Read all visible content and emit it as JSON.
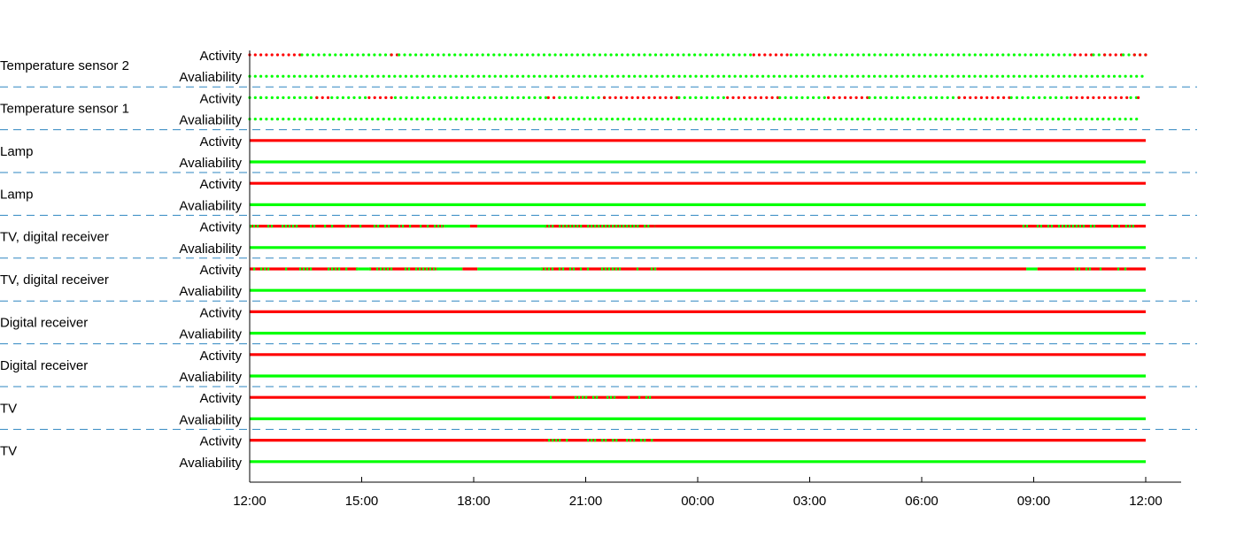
{
  "chart_data": {
    "type": "timeline",
    "xlim": [
      "12:00",
      "12:00 (+1 day)"
    ],
    "x_ticks": [
      "12:00",
      "15:00",
      "18:00",
      "21:00",
      "00:00",
      "03:00",
      "06:00",
      "09:00",
      "12:00"
    ],
    "row_labels": [
      "Activity",
      "Avaliability"
    ],
    "colors": {
      "on": "#00ff00",
      "off": "#ff0000",
      "divider": "#2e86c1",
      "axis": "#000000"
    },
    "devices": [
      {
        "name": "Temperature sensor 2",
        "style": "dots",
        "activity": [
          {
            "start": 0.0,
            "end": 1.4,
            "state": "off"
          },
          {
            "start": 1.4,
            "end": 3.8,
            "state": "on"
          },
          {
            "start": 3.8,
            "end": 4.0,
            "state": "off"
          },
          {
            "start": 4.0,
            "end": 13.5,
            "state": "on"
          },
          {
            "start": 13.5,
            "end": 14.5,
            "state": "off"
          },
          {
            "start": 14.5,
            "end": 22.1,
            "state": "on"
          },
          {
            "start": 22.1,
            "end": 22.6,
            "state": "off"
          },
          {
            "start": 22.6,
            "end": 22.9,
            "state": "on"
          },
          {
            "start": 22.9,
            "end": 23.4,
            "state": "off"
          },
          {
            "start": 23.4,
            "end": 24.0,
            "state": "on"
          },
          {
            "start": 23.7,
            "end": 24.0,
            "state": "off"
          }
        ],
        "availability": [
          {
            "start": 0.0,
            "end": 24.0,
            "state": "on"
          }
        ]
      },
      {
        "name": "Temperature sensor 1",
        "style": "dots",
        "activity": [
          {
            "start": 0.0,
            "end": 0.3,
            "state": "on"
          },
          {
            "start": 0.3,
            "end": 1.8,
            "state": "on"
          },
          {
            "start": 1.8,
            "end": 2.2,
            "state": "off"
          },
          {
            "start": 2.2,
            "end": 3.2,
            "state": "on"
          },
          {
            "start": 3.2,
            "end": 3.9,
            "state": "off"
          },
          {
            "start": 3.9,
            "end": 8.0,
            "state": "on"
          },
          {
            "start": 8.0,
            "end": 8.3,
            "state": "off"
          },
          {
            "start": 8.3,
            "end": 9.5,
            "state": "on"
          },
          {
            "start": 9.5,
            "end": 11.5,
            "state": "off"
          },
          {
            "start": 11.5,
            "end": 12.8,
            "state": "on"
          },
          {
            "start": 12.8,
            "end": 14.2,
            "state": "off"
          },
          {
            "start": 14.2,
            "end": 15.5,
            "state": "on"
          },
          {
            "start": 15.5,
            "end": 16.6,
            "state": "off"
          },
          {
            "start": 16.6,
            "end": 19.0,
            "state": "on"
          },
          {
            "start": 19.0,
            "end": 20.4,
            "state": "off"
          },
          {
            "start": 20.4,
            "end": 22.0,
            "state": "on"
          },
          {
            "start": 22.0,
            "end": 23.6,
            "state": "off"
          },
          {
            "start": 23.6,
            "end": 23.8,
            "state": "on"
          },
          {
            "start": 23.8,
            "end": 23.85,
            "state": "off"
          }
        ],
        "availability": [
          {
            "start": 0.0,
            "end": 23.85,
            "state": "on"
          }
        ]
      },
      {
        "name": "Lamp",
        "style": "line",
        "activity": [
          {
            "start": 0.0,
            "end": 24.0,
            "state": "off"
          }
        ],
        "availability": [
          {
            "start": 0.0,
            "end": 24.0,
            "state": "on"
          }
        ]
      },
      {
        "name": "Lamp",
        "style": "line",
        "activity": [
          {
            "start": 0.0,
            "end": 24.0,
            "state": "off"
          }
        ],
        "availability": [
          {
            "start": 0.0,
            "end": 24.0,
            "state": "on"
          }
        ]
      },
      {
        "name": "TV, digital receiver",
        "style": "line",
        "activity": [
          {
            "start": 0.0,
            "end": 5.2,
            "state": "flicker"
          },
          {
            "start": 5.2,
            "end": 5.9,
            "state": "on"
          },
          {
            "start": 5.9,
            "end": 6.1,
            "state": "off"
          },
          {
            "start": 6.1,
            "end": 7.9,
            "state": "on"
          },
          {
            "start": 7.9,
            "end": 10.85,
            "state": "flicker"
          },
          {
            "start": 10.85,
            "end": 20.7,
            "state": "off"
          },
          {
            "start": 20.7,
            "end": 23.8,
            "state": "flicker"
          },
          {
            "start": 23.8,
            "end": 24.0,
            "state": "off"
          }
        ],
        "availability": [
          {
            "start": 0.0,
            "end": 24.0,
            "state": "on"
          }
        ]
      },
      {
        "name": "TV, digital receiver",
        "style": "line",
        "activity": [
          {
            "start": 0.0,
            "end": 2.9,
            "state": "flicker"
          },
          {
            "start": 2.9,
            "end": 3.2,
            "state": "on"
          },
          {
            "start": 3.2,
            "end": 5.0,
            "state": "flicker"
          },
          {
            "start": 5.0,
            "end": 5.7,
            "state": "on"
          },
          {
            "start": 5.7,
            "end": 6.1,
            "state": "off"
          },
          {
            "start": 6.1,
            "end": 7.8,
            "state": "on"
          },
          {
            "start": 7.8,
            "end": 10.9,
            "state": "flicker"
          },
          {
            "start": 10.9,
            "end": 20.8,
            "state": "off"
          },
          {
            "start": 20.8,
            "end": 21.1,
            "state": "on"
          },
          {
            "start": 21.1,
            "end": 22.1,
            "state": "off"
          },
          {
            "start": 22.1,
            "end": 23.5,
            "state": "flicker"
          },
          {
            "start": 23.5,
            "end": 24.0,
            "state": "off"
          }
        ],
        "availability": [
          {
            "start": 0.0,
            "end": 24.0,
            "state": "on"
          }
        ]
      },
      {
        "name": "Digital receiver",
        "style": "line",
        "activity": [
          {
            "start": 0.0,
            "end": 24.0,
            "state": "off"
          }
        ],
        "availability": [
          {
            "start": 0.0,
            "end": 24.0,
            "state": "on"
          }
        ]
      },
      {
        "name": "Digital receiver",
        "style": "line",
        "activity": [
          {
            "start": 0.0,
            "end": 24.0,
            "state": "off"
          }
        ],
        "availability": [
          {
            "start": 0.0,
            "end": 24.0,
            "state": "on"
          }
        ]
      },
      {
        "name": "TV",
        "style": "line",
        "activity": [
          {
            "start": 0.0,
            "end": 7.85,
            "state": "off"
          },
          {
            "start": 7.85,
            "end": 10.85,
            "state": "flicker"
          },
          {
            "start": 10.85,
            "end": 24.0,
            "state": "off"
          }
        ],
        "availability": [
          {
            "start": 0.0,
            "end": 24.0,
            "state": "on"
          }
        ]
      },
      {
        "name": "TV",
        "style": "line",
        "activity": [
          {
            "start": 0.0,
            "end": 7.9,
            "state": "off"
          },
          {
            "start": 7.9,
            "end": 10.8,
            "state": "flicker"
          },
          {
            "start": 10.8,
            "end": 24.0,
            "state": "off"
          }
        ],
        "availability": [
          {
            "start": 0.0,
            "end": 24.0,
            "state": "on"
          }
        ]
      }
    ]
  }
}
